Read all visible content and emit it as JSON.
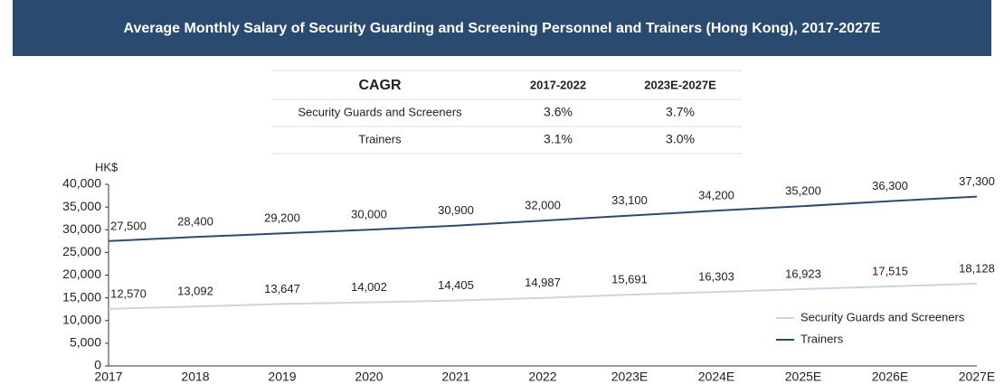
{
  "header": {
    "title": "Average Monthly Salary of Security Guarding and Screening Personnel and Trainers (Hong Kong), 2017-2027E"
  },
  "table": {
    "header": [
      "CAGR",
      "2017-2022",
      "2023E-2027E"
    ],
    "rows": [
      [
        "Security Guards and Screeners",
        "3.6%",
        "3.7%"
      ],
      [
        "Trainers",
        "3.1%",
        "3.0%"
      ]
    ]
  },
  "chart_data": {
    "type": "line",
    "y_label": "HK$",
    "categories": [
      "2017",
      "2018",
      "2019",
      "2020",
      "2021",
      "2022",
      "2023E",
      "2024E",
      "2025E",
      "2026E",
      "2027E"
    ],
    "series": [
      {
        "name": "Security Guards and Screeners",
        "color": "#c9d5e1",
        "values": [
          12570,
          13092,
          13647,
          14002,
          14405,
          14987,
          15691,
          16303,
          16923,
          17515,
          18128
        ],
        "value_labels": [
          "12,570",
          "13,092",
          "13,647",
          "14,002",
          "14,405",
          "14,987",
          "15,691",
          "16,303",
          "16,923",
          "17,515",
          "18,128"
        ]
      },
      {
        "name": "Trainers",
        "color": "#2d4b6e",
        "values": [
          27500,
          28400,
          29200,
          30000,
          30900,
          32000,
          33100,
          34200,
          35200,
          36300,
          37300
        ],
        "value_labels": [
          "27,500",
          "28,400",
          "29,200",
          "30,000",
          "30,900",
          "32,000",
          "33,100",
          "34,200",
          "35,200",
          "36,300",
          "37,300"
        ]
      }
    ],
    "ylim": [
      0,
      40000
    ],
    "yticks": [
      0,
      {
        "value": 5000,
        "label": "5,000"
      },
      {
        "value": 10000,
        "label": "10,000"
      },
      {
        "value": 15000,
        "label": "15,000"
      },
      {
        "value": 20000,
        "label": "20,000"
      },
      {
        "value": 25000,
        "label": "25,000"
      },
      {
        "value": 30000,
        "label": "30,000"
      },
      {
        "value": 35000,
        "label": "35,000"
      },
      {
        "value": 40000,
        "label": "40,000"
      }
    ],
    "legend": "lower right"
  }
}
